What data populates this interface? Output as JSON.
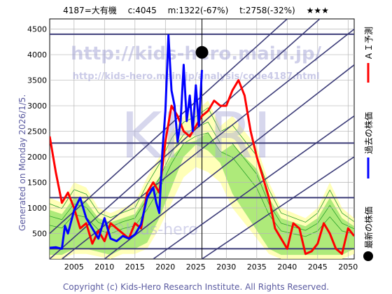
{
  "header": {
    "code": "4187=大有機",
    "current": "c:4045",
    "max": "m:1322(-67%)",
    "target": "t:2758(-32%)",
    "stars": "★★★"
  },
  "side_text": "Generated on Monday 2026/1/5.",
  "watermark": {
    "url": "http://kids-hero.main.jp/",
    "sub": "http://kids-hero.main.jp/analysis/code4187.html",
    "big": "KHRI",
    "mid": "©Kids-hero"
  },
  "footer": "Copyright (c) Kids-Hero Research Institute. All Rights Reserved.",
  "legend": {
    "ai": "ＡＩ予測",
    "past": "過去の株価",
    "latest": "最新の株価"
  },
  "colors": {
    "ai": "#ff0000",
    "past": "#0000ff",
    "latest": "#000000",
    "trend": "#3c3c78",
    "band_green": "#78dc50",
    "band_yellow": "#ffff9a"
  },
  "chart_data": {
    "type": "line",
    "title": "",
    "xlabel": "",
    "ylabel": "",
    "xlim": [
      2001,
      2051
    ],
    "ylim": [
      0,
      4700
    ],
    "x_ticks": [
      2005,
      2010,
      2015,
      2020,
      2025,
      2030,
      2035,
      2040,
      2045,
      2050
    ],
    "y_ticks": [
      500,
      1000,
      1500,
      2000,
      2500,
      3000,
      3500,
      4000,
      4500
    ],
    "grid": true,
    "latest_point": {
      "x": 2026,
      "y": 4045
    },
    "hlines": [
      4400,
      2270,
      1200,
      200
    ],
    "vline": 2026,
    "series": [
      {
        "name": "過去の株価",
        "x": [
          2001,
          2002,
          2003,
          2003.5,
          2004,
          2005,
          2006,
          2007,
          2008,
          2009,
          2010,
          2011,
          2012,
          2013,
          2014,
          2015,
          2016,
          2017,
          2018,
          2018.5,
          2019,
          2019.5,
          2020,
          2020.5,
          2021,
          2021.5,
          2022,
          2022.5,
          2023,
          2023.5,
          2024,
          2024.5,
          2025,
          2025.5,
          2026
        ],
        "y": [
          220,
          230,
          200,
          650,
          500,
          950,
          1200,
          800,
          600,
          400,
          800,
          400,
          350,
          450,
          400,
          480,
          680,
          1200,
          1400,
          1100,
          900,
          2100,
          2900,
          4380,
          3300,
          3000,
          2300,
          2700,
          3800,
          2700,
          3200,
          2500,
          3400,
          2600,
          3700
        ]
      },
      {
        "name": "ＡＩ予測",
        "x": [
          2001,
          2002,
          2003,
          2004,
          2005,
          2006,
          2007,
          2008,
          2009,
          2010,
          2011,
          2012,
          2013,
          2014,
          2015,
          2016,
          2017,
          2018,
          2019,
          2020,
          2021,
          2022,
          2023,
          2024,
          2025,
          2026,
          2027,
          2028,
          2029,
          2030,
          2031,
          2032,
          2033,
          2034,
          2035,
          2036,
          2037,
          2038,
          2039,
          2040,
          2041,
          2042,
          2043,
          2044,
          2045,
          2046,
          2047,
          2048,
          2049,
          2050,
          2051
        ],
        "y": [
          2400,
          1700,
          1100,
          1300,
          1000,
          600,
          700,
          300,
          550,
          350,
          700,
          600,
          500,
          400,
          700,
          600,
          1300,
          1500,
          1300,
          2300,
          3000,
          2800,
          2500,
          2400,
          2600,
          2800,
          2900,
          3100,
          3000,
          3000,
          3300,
          3500,
          3200,
          2500,
          2000,
          1600,
          1200,
          600,
          400,
          200,
          700,
          600,
          100,
          150,
          300,
          700,
          500,
          200,
          100,
          600,
          450
        ]
      }
    ]
  }
}
